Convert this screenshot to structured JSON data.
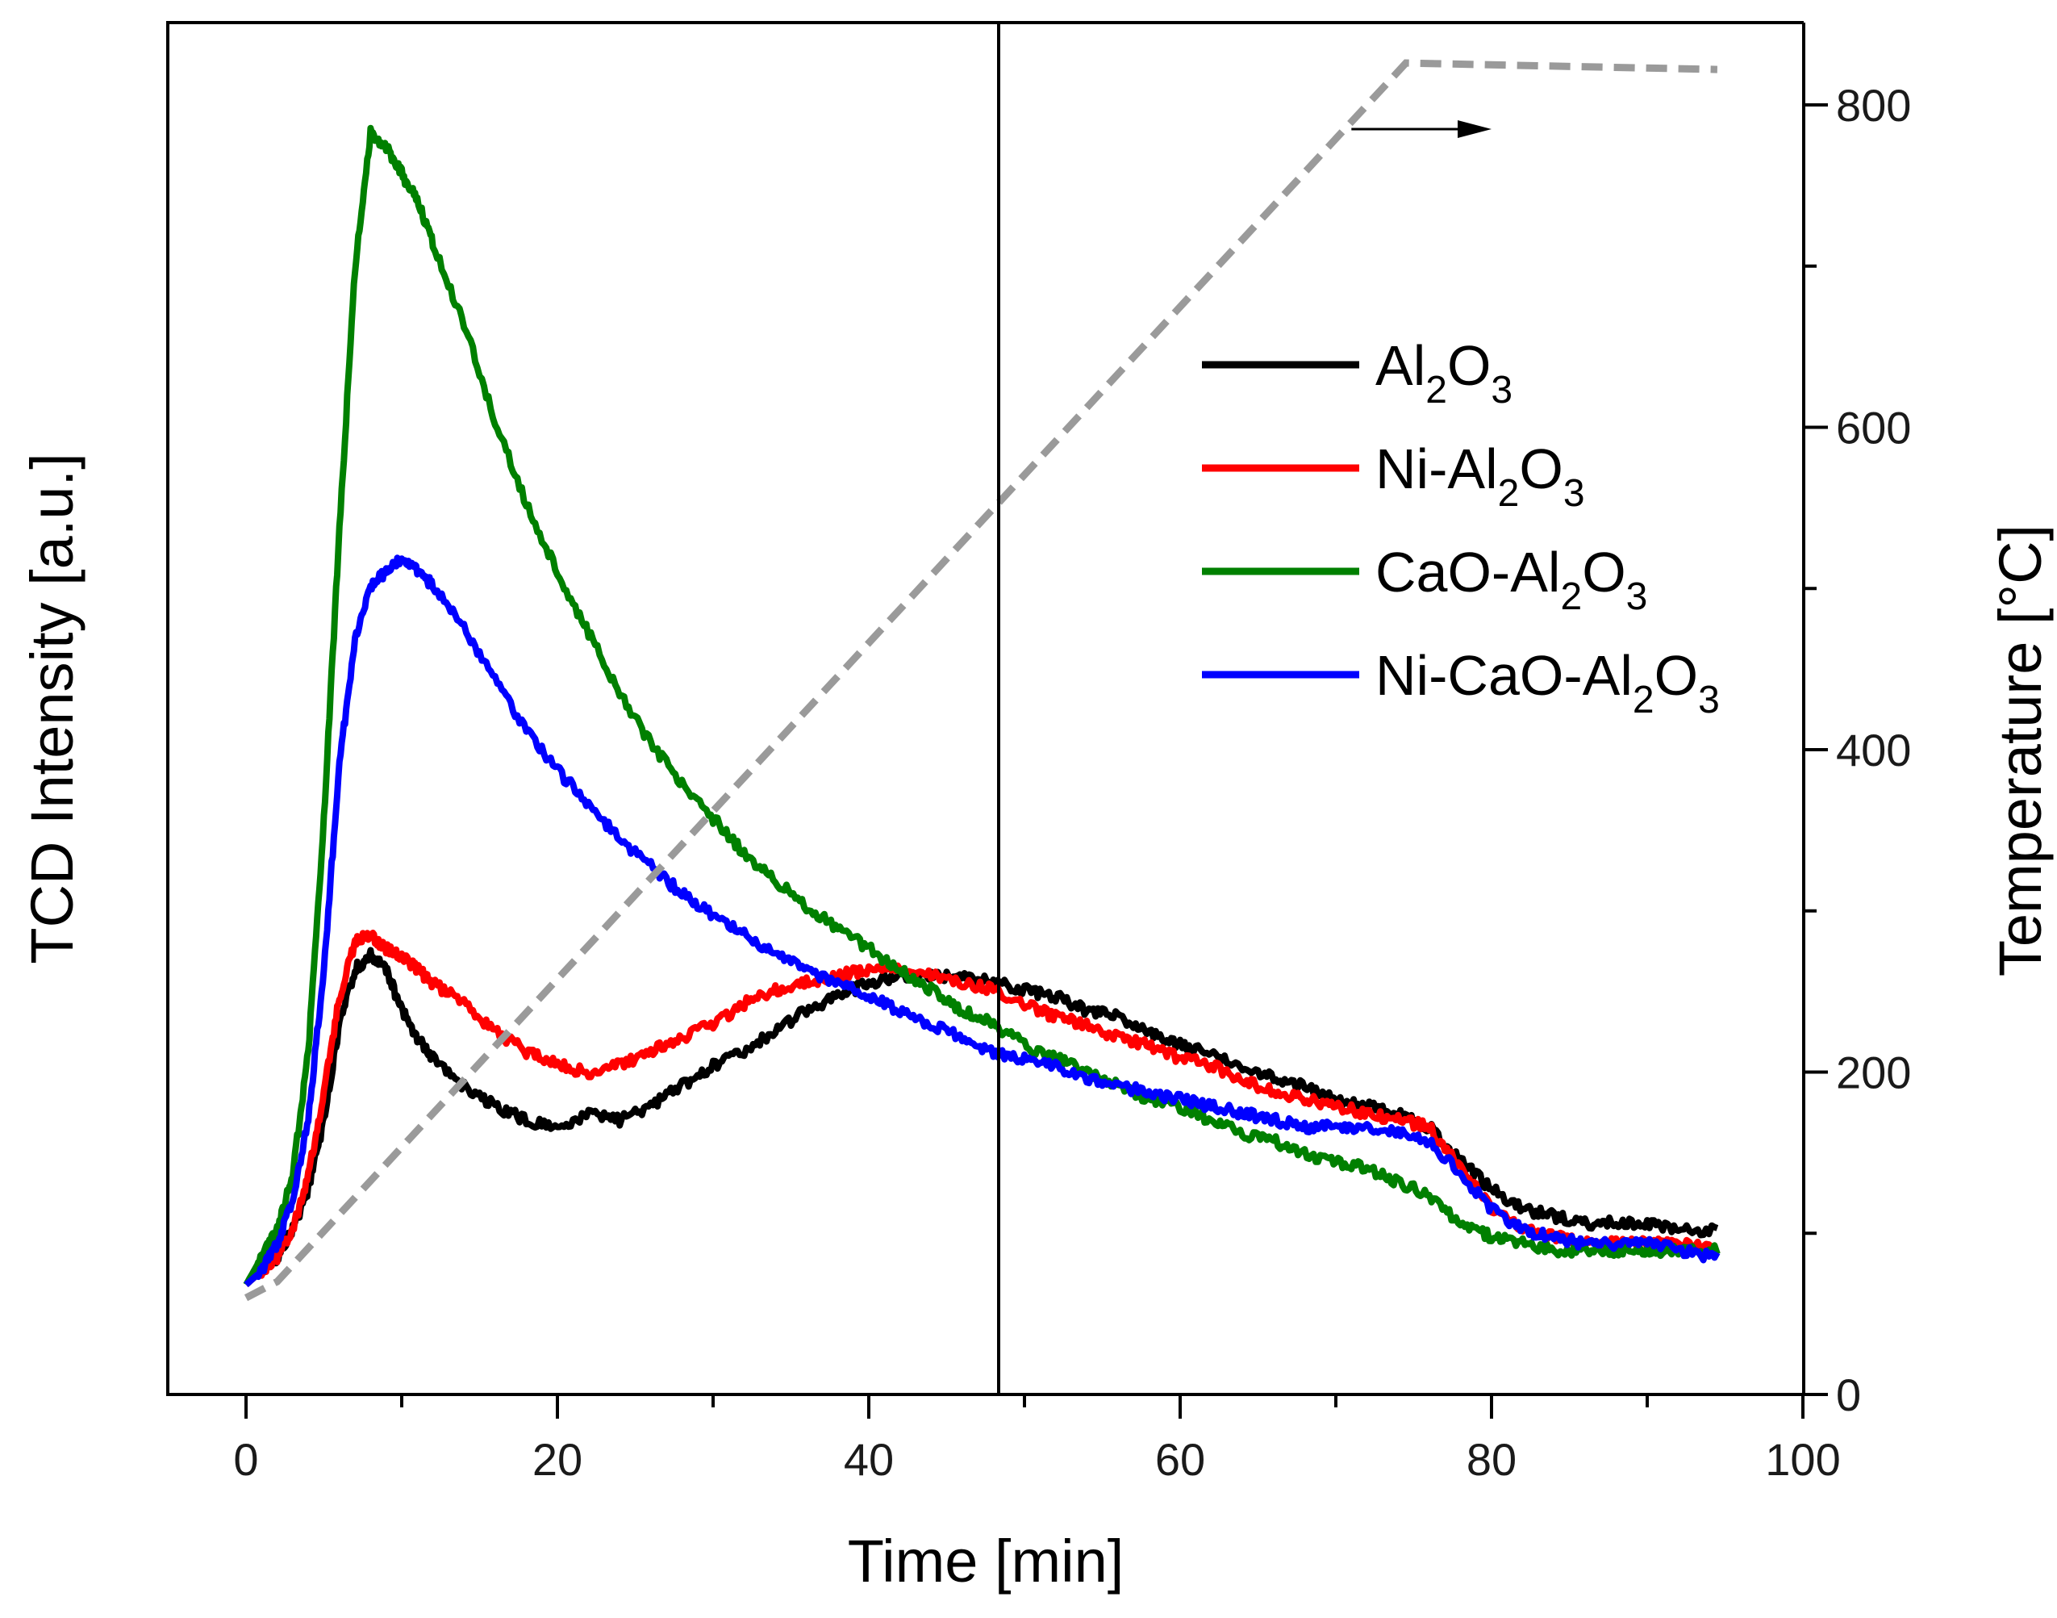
{
  "chart_data": {
    "type": "line",
    "xlabel": "Time [min]",
    "ylabel_left": "TCD Intensity [a.u.]",
    "ylabel_right": "Temperature [°C]",
    "xlim": [
      -5,
      100
    ],
    "xticks": [
      0,
      20,
      40,
      60,
      80,
      100
    ],
    "y_right_lim": [
      0,
      860
    ],
    "y_right_ticks": [
      0,
      200,
      400,
      600,
      800
    ],
    "y_left_lim": [
      0,
      100
    ],
    "y_left_ticks_shown": false,
    "legend": {
      "position": "upper-right",
      "entries": [
        {
          "series": "Al2O3",
          "prefix": "Al",
          "sub1": "2",
          "mid": "O",
          "sub2": "3"
        },
        {
          "series": "Ni-Al2O3",
          "prefix": "Ni-Al",
          "sub1": "2",
          "mid": "O",
          "sub2": "3"
        },
        {
          "series": "CaO-Al2O3",
          "prefix": "CaO-Al",
          "sub1": "2",
          "mid": "O",
          "sub2": "3"
        },
        {
          "series": "Ni-CaO-Al2O3",
          "prefix": "Ni-CaO-Al",
          "sub1": "2",
          "mid": "O",
          "sub2": "3"
        }
      ]
    },
    "series": [
      {
        "name": "Al2O3",
        "color": "#000000",
        "axis": "left",
        "x": [
          0,
          1,
          2,
          3,
          4,
          5,
          6,
          7,
          8,
          9,
          10,
          11,
          12,
          14,
          16,
          18,
          20,
          22,
          24,
          26,
          28,
          30,
          32,
          34,
          36,
          38,
          40,
          42,
          44,
          46,
          48,
          50,
          52,
          54,
          56,
          58,
          60,
          62,
          64,
          66,
          68,
          70,
          72,
          74,
          76,
          78,
          80,
          82,
          84,
          86,
          88,
          90,
          92,
          94.5
        ],
        "y": [
          8,
          9,
          10,
          12,
          15,
          20,
          27,
          31,
          32,
          31,
          28,
          26,
          24.5,
          22.5,
          21,
          20,
          19.5,
          20.5,
          20,
          21,
          22.5,
          24,
          25,
          26.5,
          28,
          29,
          30,
          30.5,
          30.5,
          30.5,
          30,
          29.5,
          29,
          28,
          27.5,
          26.5,
          25.5,
          25,
          24,
          23,
          22.5,
          21.5,
          21,
          20.5,
          19.5,
          17,
          15,
          13.5,
          13,
          12.5,
          12.5,
          12.5,
          12,
          12
        ]
      },
      {
        "name": "Ni-Al2O3",
        "color": "#ff0000",
        "axis": "left",
        "x": [
          0,
          1,
          2,
          3,
          4,
          5,
          6,
          7,
          8,
          9,
          10,
          11,
          12,
          14,
          16,
          18,
          20,
          22,
          24,
          26,
          28,
          30,
          32,
          34,
          36,
          38,
          40,
          42,
          44,
          46,
          48,
          50,
          52,
          54,
          56,
          58,
          60,
          62,
          64,
          66,
          68,
          70,
          72,
          74,
          76,
          78,
          80,
          82,
          84,
          86,
          88,
          90,
          92,
          94.5
        ],
        "y": [
          8,
          9,
          10,
          12,
          16,
          22,
          29,
          33,
          33.5,
          32.5,
          32,
          31,
          30,
          28.5,
          26.5,
          25,
          24,
          23.5,
          24,
          25,
          26,
          27,
          28.5,
          29.5,
          30,
          30.5,
          31,
          31,
          30.5,
          30,
          29.5,
          28.5,
          27.5,
          27,
          26,
          25.5,
          24.5,
          24,
          23,
          22,
          21.5,
          21,
          20.5,
          20,
          19.5,
          16.5,
          13.5,
          12,
          11.5,
          11,
          11,
          11,
          11,
          10.5
        ]
      },
      {
        "name": "CaO-Al2O3",
        "color": "#008000",
        "axis": "left",
        "x": [
          0,
          1,
          2,
          3,
          4,
          5,
          6,
          7,
          8,
          9,
          10,
          11,
          12,
          14,
          16,
          18,
          20,
          22,
          24,
          26,
          28,
          30,
          32,
          34,
          36,
          38,
          40,
          42,
          44,
          46,
          48,
          50,
          52,
          54,
          56,
          58,
          60,
          62,
          64,
          66,
          68,
          70,
          72,
          74,
          76,
          78,
          80,
          82,
          84,
          86,
          88,
          90,
          92,
          94.5
        ],
        "y": [
          8,
          10,
          12,
          16,
          25,
          42,
          63,
          82,
          92,
          91,
          89,
          87,
          84,
          78,
          71,
          65,
          60,
          55.5,
          51,
          47.5,
          44.5,
          42,
          39.5,
          37.5,
          35.5,
          34,
          32.5,
          31,
          29.5,
          28,
          27,
          25.5,
          24.5,
          23.5,
          22.5,
          21.5,
          21,
          20,
          19,
          18.5,
          17.5,
          17,
          16.5,
          15.5,
          14.5,
          12.5,
          11.5,
          11,
          10.5,
          10.5,
          10.5,
          10.5,
          10.5,
          10.5
        ]
      },
      {
        "name": "Ni-CaO-Al2O3",
        "color": "#0000ff",
        "axis": "left",
        "x": [
          0,
          1,
          2,
          3,
          4,
          5,
          6,
          7,
          8,
          9,
          10,
          11,
          12,
          14,
          16,
          18,
          20,
          22,
          24,
          26,
          28,
          30,
          32,
          34,
          36,
          38,
          40,
          42,
          44,
          46,
          48,
          50,
          52,
          54,
          56,
          58,
          60,
          62,
          64,
          66,
          68,
          70,
          72,
          74,
          76,
          78,
          80,
          82,
          84,
          86,
          88,
          90,
          92,
          94.5
        ],
        "y": [
          8,
          9,
          11,
          14,
          20,
          31,
          46,
          55,
          59,
          60,
          61,
          60,
          59,
          56,
          52,
          48.5,
          45.5,
          43,
          40.5,
          38.5,
          36.5,
          35,
          33.5,
          32,
          31,
          30,
          29,
          28,
          27,
          26,
          25,
          24.5,
          24,
          23,
          22.5,
          22,
          21.5,
          21,
          20.5,
          20,
          19.5,
          19.5,
          19.5,
          19,
          18.5,
          16,
          13.5,
          12,
          11.5,
          11,
          11,
          11,
          10.5,
          10
        ]
      },
      {
        "name": "Temperature",
        "color": "#9a9a9a",
        "axis": "right",
        "style": "dashed",
        "x": [
          0,
          2,
          74.5,
          94.5
        ],
        "y": [
          60,
          70,
          826,
          822
        ]
      }
    ],
    "annotations": [
      {
        "type": "arrow",
        "points_to": "right-axis",
        "from": [
          71,
          785
        ],
        "to": [
          80,
          785
        ],
        "axis": "right"
      }
    ]
  }
}
